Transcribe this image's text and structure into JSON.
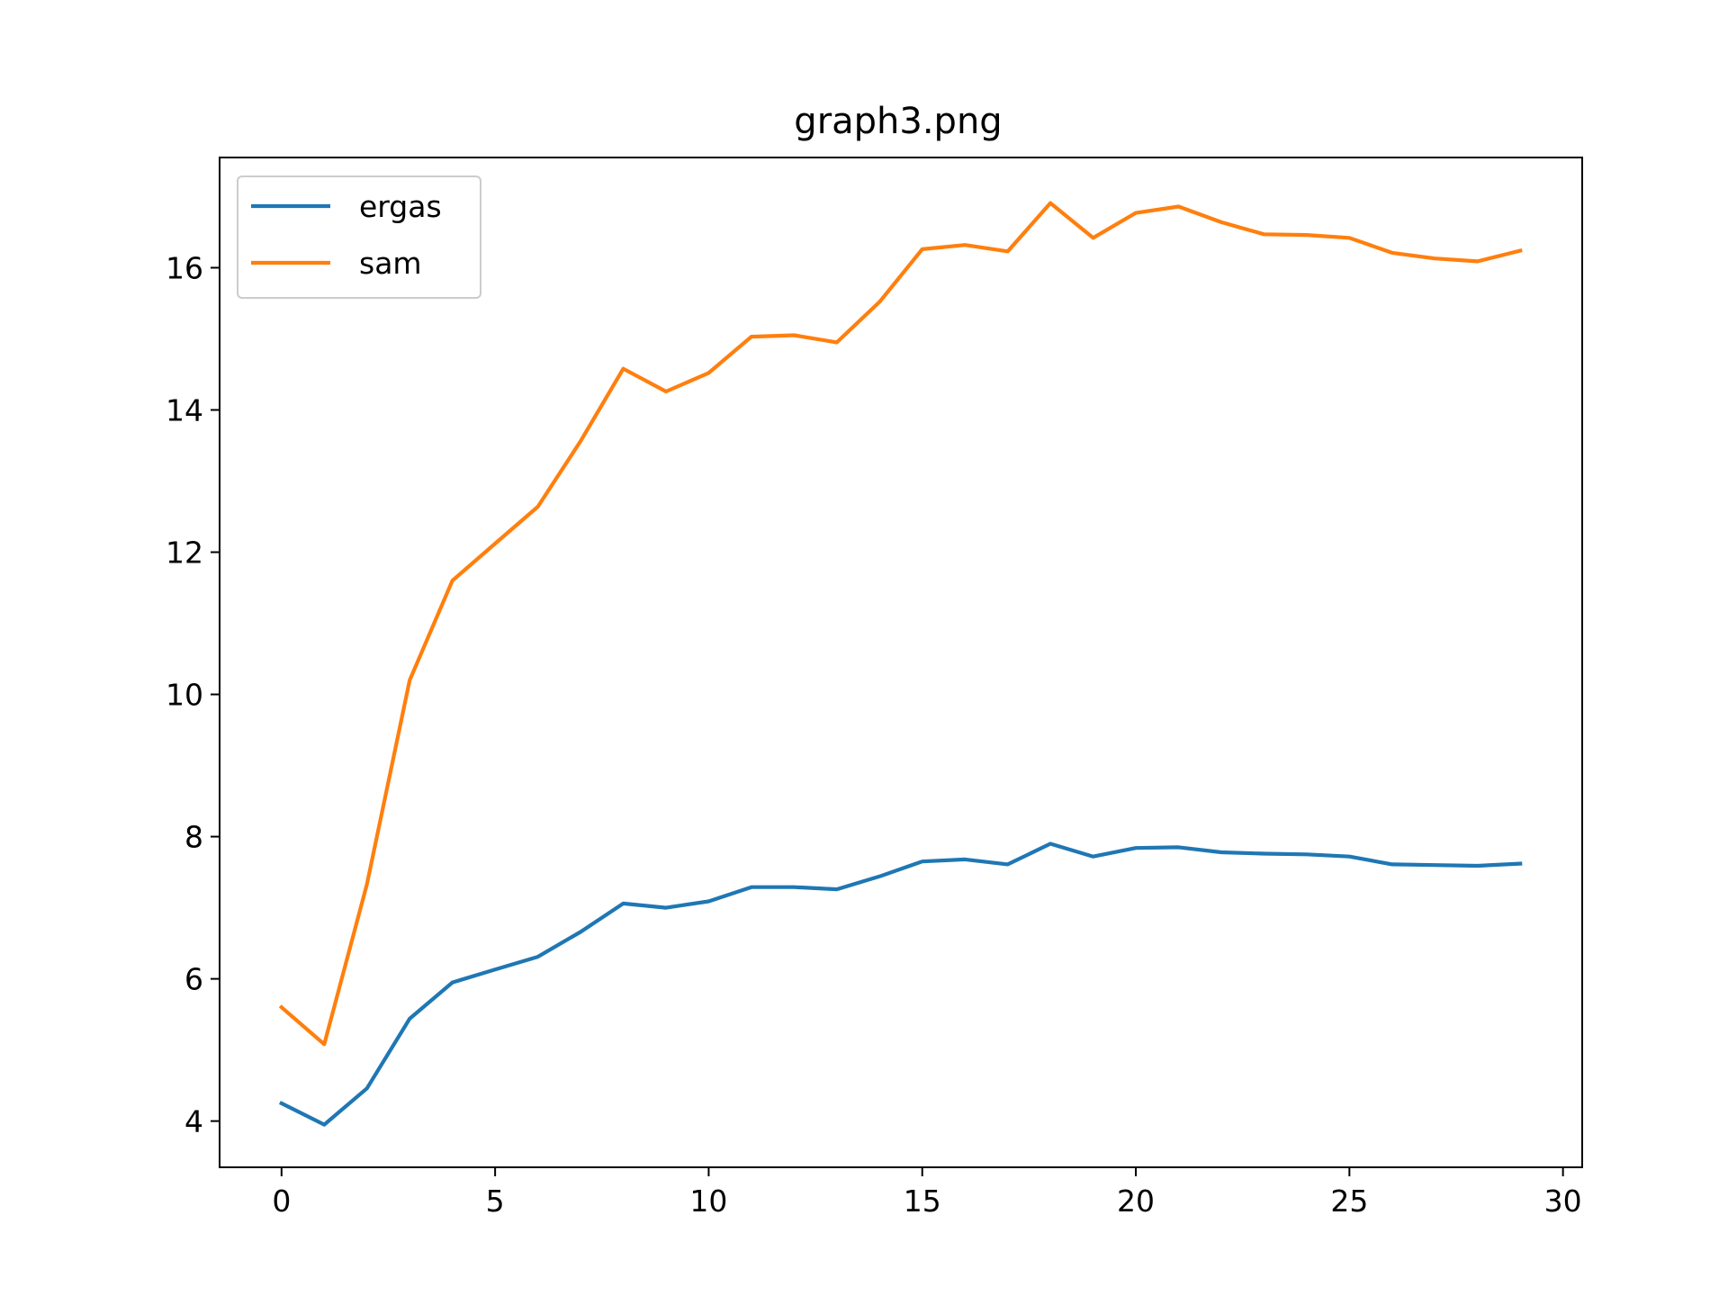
{
  "chart_data": {
    "type": "line",
    "title": "graph3.png",
    "xlabel": "",
    "ylabel": "",
    "xlim": [
      -1.45,
      30.45
    ],
    "ylim": [
      3.35,
      17.55
    ],
    "x_ticks": [
      0,
      5,
      10,
      15,
      20,
      25,
      30
    ],
    "y_ticks": [
      4,
      6,
      8,
      10,
      12,
      14,
      16
    ],
    "grid": false,
    "legend_position": "top-left",
    "x": [
      0,
      1,
      2,
      3,
      4,
      5,
      6,
      7,
      8,
      9,
      10,
      11,
      12,
      13,
      14,
      15,
      16,
      17,
      18,
      19,
      20,
      21,
      22,
      23,
      24,
      25,
      26,
      27,
      28,
      29
    ],
    "series": [
      {
        "name": "ergas",
        "color": "#1f77b4",
        "values": [
          4.25,
          3.95,
          4.46,
          5.44,
          5.95,
          6.13,
          6.31,
          6.66,
          7.06,
          7.0,
          7.09,
          7.29,
          7.29,
          7.26,
          7.44,
          7.65,
          7.68,
          7.61,
          7.9,
          7.72,
          7.84,
          7.85,
          7.78,
          7.76,
          7.75,
          7.72,
          7.61,
          7.6,
          7.59,
          7.62
        ]
      },
      {
        "name": "sam",
        "color": "#ff7f0e",
        "values": [
          5.6,
          5.08,
          7.33,
          10.2,
          11.6,
          12.12,
          12.64,
          13.56,
          14.58,
          14.26,
          14.52,
          15.03,
          15.05,
          14.95,
          15.52,
          16.26,
          16.32,
          16.23,
          16.91,
          16.42,
          16.77,
          16.86,
          16.64,
          16.47,
          16.46,
          16.42,
          16.21,
          16.13,
          16.09,
          16.24
        ]
      }
    ]
  }
}
